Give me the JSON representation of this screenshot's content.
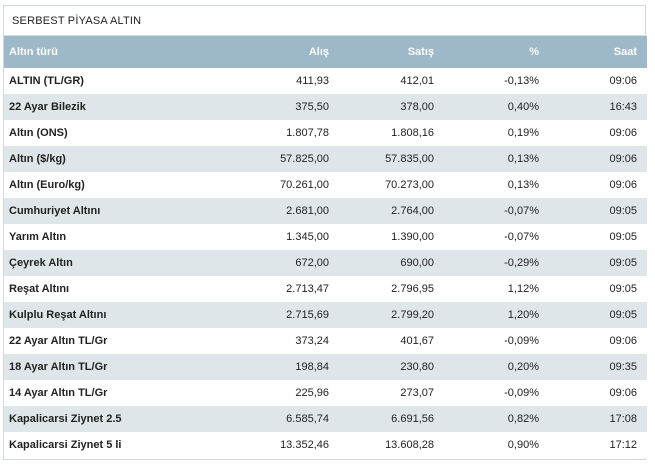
{
  "widget": {
    "title": "SERBEST PİYASA ALTIN"
  },
  "table": {
    "headers": {
      "name": "Altın türü",
      "buy": "Alış",
      "sell": "Satış",
      "pct": "%",
      "time": "Saat"
    },
    "rows": [
      {
        "name": "ALTIN (TL/GR)",
        "buy": "411,93",
        "sell": "412,01",
        "pct": "-0,13%",
        "time": "09:06"
      },
      {
        "name": "22 Ayar Bilezik",
        "buy": "375,50",
        "sell": "378,00",
        "pct": "0,40%",
        "time": "16:43"
      },
      {
        "name": "Altın (ONS)",
        "buy": "1.807,78",
        "sell": "1.808,16",
        "pct": "0,19%",
        "time": "09:06"
      },
      {
        "name": "Altın ($/kg)",
        "buy": "57.825,00",
        "sell": "57.835,00",
        "pct": "0,13%",
        "time": "09:06"
      },
      {
        "name": "Altın (Euro/kg)",
        "buy": "70.261,00",
        "sell": "70.273,00",
        "pct": "0,13%",
        "time": "09:06"
      },
      {
        "name": "Cumhuriyet Altını",
        "buy": "2.681,00",
        "sell": "2.764,00",
        "pct": "-0,07%",
        "time": "09:05"
      },
      {
        "name": "Yarım Altın",
        "buy": "1.345,00",
        "sell": "1.390,00",
        "pct": "-0,07%",
        "time": "09:05"
      },
      {
        "name": "Çeyrek Altın",
        "buy": "672,00",
        "sell": "690,00",
        "pct": "-0,29%",
        "time": "09:05"
      },
      {
        "name": "Reşat Altını",
        "buy": "2.713,47",
        "sell": "2.796,95",
        "pct": "1,12%",
        "time": "09:05"
      },
      {
        "name": "Kulplu Reşat Altını",
        "buy": "2.715,69",
        "sell": "2.799,20",
        "pct": "1,20%",
        "time": "09:05"
      },
      {
        "name": "22 Ayar Altın TL/Gr",
        "buy": "373,24",
        "sell": "401,67",
        "pct": "-0,09%",
        "time": "09:06"
      },
      {
        "name": "18 Ayar Altın TL/Gr",
        "buy": "198,84",
        "sell": "230,80",
        "pct": "0,20%",
        "time": "09:35"
      },
      {
        "name": "14 Ayar Altın TL/Gr",
        "buy": "225,96",
        "sell": "273,07",
        "pct": "-0,09%",
        "time": "09:06"
      },
      {
        "name": "Kapalicarsi Ziynet 2.5",
        "buy": "6.585,74",
        "sell": "6.691,56",
        "pct": "0,82%",
        "time": "17:08"
      },
      {
        "name": "Kapalicarsi Ziynet 5 li",
        "buy": "13.352,46",
        "sell": "13.608,28",
        "pct": "0,90%",
        "time": "17:12"
      }
    ]
  }
}
